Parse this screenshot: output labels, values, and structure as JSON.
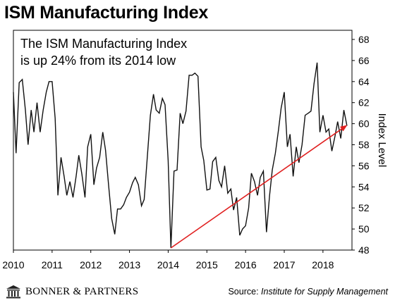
{
  "title": "ISM Manufacturing Index",
  "annotation": [
    "The ISM Manufacturing Index",
    "is up 24% from its 2014 low"
  ],
  "footer": {
    "brand": "BONNER & PARTNERS",
    "source_prefix": "Source: ",
    "source_name": "Institute for Supply Management"
  },
  "chart_data": {
    "type": "line",
    "title": "ISM Manufacturing Index",
    "ylabel": "Index Level",
    "xlabel": "",
    "xlim": [
      2010,
      2018.75
    ],
    "ylim": [
      48,
      68
    ],
    "x_ticks": [
      "2010",
      "2011",
      "2012",
      "2013",
      "2014",
      "2015",
      "2016",
      "2017",
      "2018"
    ],
    "y_ticks": [
      "48",
      "50",
      "52",
      "54",
      "56",
      "58",
      "60",
      "62",
      "64",
      "66",
      "68"
    ],
    "grid": false,
    "line_color": "#111111",
    "series": [
      {
        "values": [
          [
            2010.0,
            63.0
          ],
          [
            2010.07,
            57.2
          ],
          [
            2010.15,
            63.9
          ],
          [
            2010.23,
            64.2
          ],
          [
            2010.31,
            61.3
          ],
          [
            2010.38,
            58.0
          ],
          [
            2010.46,
            61.3
          ],
          [
            2010.53,
            59.2
          ],
          [
            2010.61,
            62.0
          ],
          [
            2010.69,
            59.2
          ],
          [
            2010.77,
            61.3
          ],
          [
            2010.85,
            63.0
          ],
          [
            2010.92,
            64.0
          ],
          [
            2011.0,
            64.0
          ],
          [
            2011.08,
            60.5
          ],
          [
            2011.15,
            53.2
          ],
          [
            2011.23,
            56.8
          ],
          [
            2011.31,
            55.0
          ],
          [
            2011.38,
            53.2
          ],
          [
            2011.46,
            54.5
          ],
          [
            2011.54,
            53.0
          ],
          [
            2011.62,
            55.0
          ],
          [
            2011.69,
            57.0
          ],
          [
            2011.77,
            55.2
          ],
          [
            2011.85,
            53.0
          ],
          [
            2011.92,
            57.8
          ],
          [
            2012.0,
            59.0
          ],
          [
            2012.08,
            54.2
          ],
          [
            2012.15,
            55.8
          ],
          [
            2012.23,
            56.8
          ],
          [
            2012.31,
            59.2
          ],
          [
            2012.38,
            57.5
          ],
          [
            2012.46,
            54.2
          ],
          [
            2012.54,
            51.0
          ],
          [
            2012.62,
            49.5
          ],
          [
            2012.69,
            51.9
          ],
          [
            2012.77,
            51.9
          ],
          [
            2012.85,
            52.3
          ],
          [
            2012.92,
            53.0
          ],
          [
            2013.0,
            53.5
          ],
          [
            2013.08,
            54.4
          ],
          [
            2013.15,
            54.9
          ],
          [
            2013.23,
            54.2
          ],
          [
            2013.31,
            52.2
          ],
          [
            2013.38,
            52.8
          ],
          [
            2013.46,
            56.8
          ],
          [
            2013.54,
            60.8
          ],
          [
            2013.62,
            62.8
          ],
          [
            2013.69,
            61.3
          ],
          [
            2013.77,
            61.0
          ],
          [
            2013.85,
            62.4
          ],
          [
            2013.92,
            61.8
          ],
          [
            2014.0,
            56.5
          ],
          [
            2014.07,
            48.2
          ],
          [
            2014.15,
            55.5
          ],
          [
            2014.23,
            55.6
          ],
          [
            2014.31,
            61.0
          ],
          [
            2014.38,
            60.0
          ],
          [
            2014.46,
            61.2
          ],
          [
            2014.54,
            64.6
          ],
          [
            2014.62,
            64.6
          ],
          [
            2014.69,
            64.8
          ],
          [
            2014.77,
            64.5
          ],
          [
            2014.85,
            57.8
          ],
          [
            2014.92,
            56.5
          ],
          [
            2015.0,
            53.7
          ],
          [
            2015.08,
            53.8
          ],
          [
            2015.15,
            56.4
          ],
          [
            2015.23,
            56.8
          ],
          [
            2015.31,
            54.6
          ],
          [
            2015.38,
            54.0
          ],
          [
            2015.46,
            56.0
          ],
          [
            2015.54,
            53.4
          ],
          [
            2015.62,
            53.8
          ],
          [
            2015.69,
            51.8
          ],
          [
            2015.77,
            53.0
          ],
          [
            2015.85,
            49.4
          ],
          [
            2015.92,
            50.0
          ],
          [
            2016.0,
            50.3
          ],
          [
            2016.08,
            52.0
          ],
          [
            2016.15,
            55.3
          ],
          [
            2016.23,
            54.5
          ],
          [
            2016.31,
            53.2
          ],
          [
            2016.38,
            54.9
          ],
          [
            2016.46,
            55.5
          ],
          [
            2016.54,
            49.7
          ],
          [
            2016.62,
            53.2
          ],
          [
            2016.69,
            55.6
          ],
          [
            2016.77,
            57.2
          ],
          [
            2016.85,
            59.4
          ],
          [
            2016.92,
            61.5
          ],
          [
            2017.0,
            63.0
          ],
          [
            2017.08,
            57.8
          ],
          [
            2017.15,
            59.0
          ],
          [
            2017.23,
            55.0
          ],
          [
            2017.31,
            57.8
          ],
          [
            2017.38,
            56.3
          ],
          [
            2017.46,
            58.0
          ],
          [
            2017.54,
            60.8
          ],
          [
            2017.62,
            61.0
          ],
          [
            2017.69,
            61.2
          ],
          [
            2017.77,
            63.8
          ],
          [
            2017.85,
            65.8
          ],
          [
            2017.92,
            59.2
          ],
          [
            2018.0,
            60.8
          ],
          [
            2018.08,
            59.2
          ],
          [
            2018.15,
            59.5
          ],
          [
            2018.23,
            57.4
          ],
          [
            2018.31,
            58.8
          ],
          [
            2018.38,
            60.2
          ],
          [
            2018.46,
            58.6
          ],
          [
            2018.54,
            61.3
          ],
          [
            2018.62,
            59.8
          ]
        ]
      }
    ],
    "trendline": {
      "color": "#e02020",
      "from": [
        2014.07,
        48.2
      ],
      "to": [
        2018.6,
        59.8
      ]
    }
  }
}
